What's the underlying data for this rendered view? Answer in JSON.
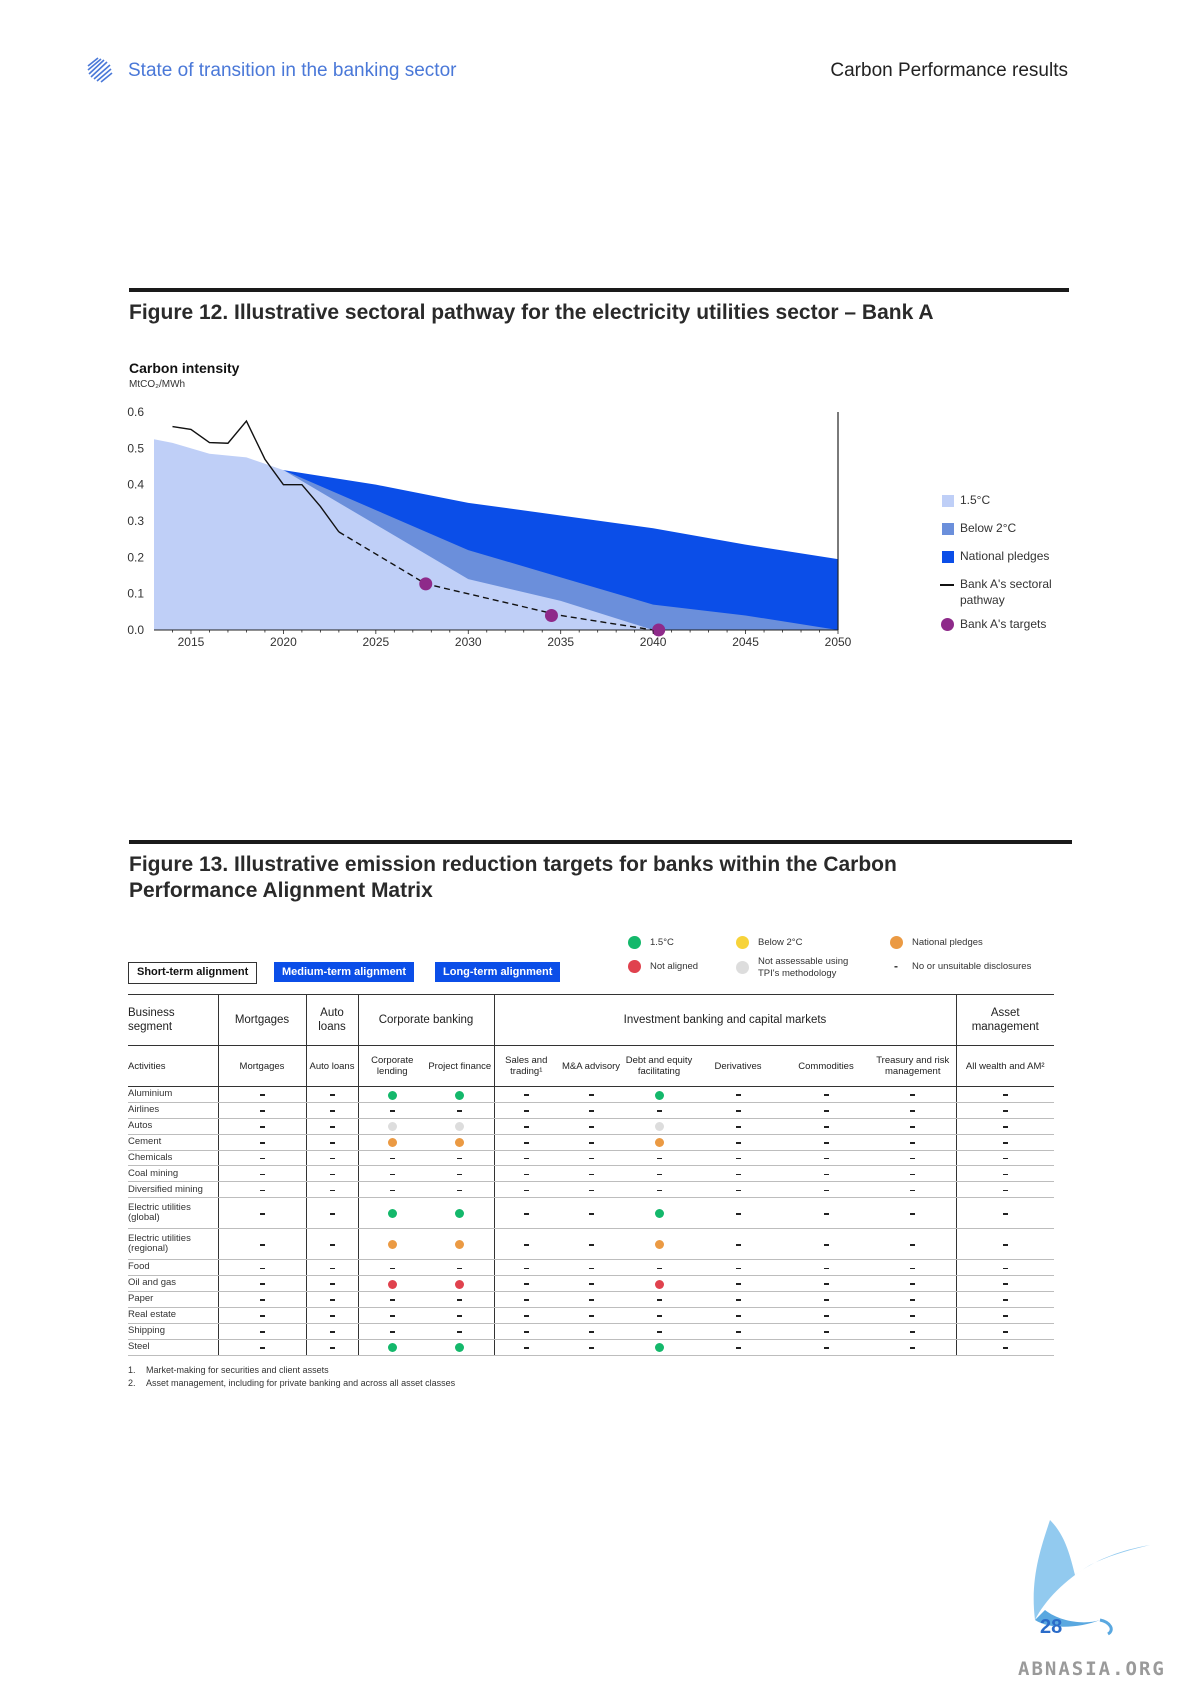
{
  "header": {
    "doc_title": "State of transition in the banking sector",
    "section_title": "Carbon Performance results"
  },
  "figure12": {
    "title": "Figure 12. Illustrative sectoral pathway for the electricity utilities sector – Bank A",
    "colors": {
      "one_point_five": "#bfcff7",
      "below_two": "#6b8fdb",
      "national": "#0b4ee8",
      "target": "#8e2a8a"
    },
    "legend": [
      {
        "key": "one_point_five",
        "label": "1.5°C",
        "type": "swatch",
        "color": "#bfcff7"
      },
      {
        "key": "below_two",
        "label": "Below 2°C",
        "type": "swatch",
        "color": "#6b8fdb"
      },
      {
        "key": "national",
        "label": "National pledges",
        "type": "swatch",
        "color": "#0b4ee8"
      },
      {
        "key": "pathway",
        "label": "Bank A's sectoral pathway",
        "type": "line",
        "color": "#111111"
      },
      {
        "key": "targets",
        "label": "Bank A's targets",
        "type": "dot",
        "color": "#8e2a8a"
      }
    ]
  },
  "chart_data": {
    "type": "area",
    "title": "Carbon intensity",
    "ylabel": "MtCO₂/MWh",
    "xlabel": "",
    "xlim": [
      2013,
      2050
    ],
    "ylim": [
      0,
      0.6
    ],
    "x_ticks": [
      2015,
      2020,
      2025,
      2030,
      2035,
      2040,
      2045,
      2050
    ],
    "y_ticks": [
      "0.0",
      "0.1",
      "0.2",
      "0.3",
      "0.4",
      "0.5",
      "0.6"
    ],
    "series": [
      {
        "name": "National pledges",
        "x": [
          2020,
          2025,
          2030,
          2035,
          2040,
          2045,
          2050
        ],
        "y": [
          0.44,
          0.4,
          0.35,
          0.315,
          0.28,
          0.235,
          0.195
        ]
      },
      {
        "name": "Below 2°C",
        "x": [
          2020,
          2025,
          2030,
          2035,
          2040,
          2045,
          2050
        ],
        "y": [
          0.44,
          0.33,
          0.22,
          0.145,
          0.07,
          0.04,
          0.0
        ]
      },
      {
        "name": "1.5°C",
        "x": [
          2013,
          2014,
          2016,
          2018,
          2020,
          2025,
          2030,
          2035,
          2040,
          2050
        ],
        "y": [
          0.525,
          0.515,
          0.485,
          0.475,
          0.44,
          0.29,
          0.14,
          0.08,
          0.0,
          0.0
        ]
      },
      {
        "name": "Bank A's sectoral pathway",
        "x": [
          2014,
          2015,
          2016,
          2017,
          2018,
          2019,
          2020,
          2021,
          2022,
          2023
        ],
        "y": [
          0.56,
          0.552,
          0.516,
          0.514,
          0.575,
          0.47,
          0.4,
          0.4,
          0.34,
          0.27
        ]
      },
      {
        "name": "Bank A's sectoral pathway (projected)",
        "x": [
          2023,
          2027.7,
          2035,
          2040
        ],
        "y": [
          0.27,
          0.127,
          0.04,
          0.0
        ]
      },
      {
        "name": "Bank A's targets",
        "x": [
          2027.7,
          2034.5,
          2040.3
        ],
        "y": [
          0.127,
          0.04,
          0.0
        ]
      }
    ]
  },
  "figure13": {
    "title_line1": "Figure 13. Illustrative emission reduction targets for banks within the Carbon",
    "title_line2": "Performance Alignment Matrix",
    "tags": {
      "short": "Short-term alignment",
      "medium": "Medium-term alignment",
      "long": "Long-term alignment"
    },
    "legend": {
      "g": "1.5°C",
      "y": "Below 2°C",
      "o": "National pledges",
      "r": "Not aligned",
      "n": "Not assessable using TPI's methodology",
      "d": "No or unsuitable disclosures"
    },
    "status_colors": {
      "g": "#14b86b",
      "y": "#f7d33a",
      "o": "#eb9a43",
      "r": "#e0424e",
      "n": "#dddddd"
    },
    "segments": {
      "first": "Business segment",
      "mortgages": "Mortgages",
      "auto": "Auto loans",
      "corporate": "Corporate banking",
      "investment": "Investment banking and capital markets",
      "asset": "Asset management"
    },
    "activities": {
      "first": "Activities",
      "mortgages": "Mortgages",
      "auto": "Auto loans",
      "corp_lending": "Corporate lending",
      "project": "Project finance",
      "sales": "Sales and trading¹",
      "ma": "M&A advisory",
      "debt": "Debt and equity facilitating",
      "deriv": "Derivatives",
      "comm": "Commodities",
      "treasury": "Treasury and risk management",
      "wealth": "All wealth and AM²"
    },
    "rows": [
      {
        "sector": "Aluminium",
        "v": [
          "d",
          "d",
          "g",
          "g",
          "d",
          "d",
          "g",
          "d",
          "d",
          "d",
          "d"
        ]
      },
      {
        "sector": "Airlines",
        "v": [
          "d",
          "d",
          "d",
          "d",
          "d",
          "d",
          "d",
          "d",
          "d",
          "d",
          "d"
        ]
      },
      {
        "sector": "Autos",
        "v": [
          "d",
          "d",
          "n",
          "n",
          "d",
          "d",
          "n",
          "d",
          "d",
          "d",
          "d"
        ]
      },
      {
        "sector": "Cement",
        "v": [
          "d",
          "d",
          "o",
          "o",
          "d",
          "d",
          "o",
          "d",
          "d",
          "d",
          "d"
        ]
      },
      {
        "sector": "Chemicals",
        "v": [
          "d",
          "d",
          "d",
          "d",
          "d",
          "d",
          "d",
          "d",
          "d",
          "d",
          "d"
        ]
      },
      {
        "sector": "Coal mining",
        "v": [
          "d",
          "d",
          "d",
          "d",
          "d",
          "d",
          "d",
          "d",
          "d",
          "d",
          "d"
        ]
      },
      {
        "sector": "Diversified mining",
        "v": [
          "d",
          "d",
          "d",
          "d",
          "d",
          "d",
          "d",
          "d",
          "d",
          "d",
          "d"
        ]
      },
      {
        "sector": "Electric utilities (global)",
        "tall": true,
        "v": [
          "d",
          "d",
          "g",
          "g",
          "d",
          "d",
          "g",
          "d",
          "d",
          "d",
          "d"
        ]
      },
      {
        "sector": "Electric utilities (regional)",
        "tall": true,
        "v": [
          "d",
          "d",
          "o",
          "o",
          "d",
          "d",
          "o",
          "d",
          "d",
          "d",
          "d"
        ]
      },
      {
        "sector": "Food",
        "v": [
          "d",
          "d",
          "d",
          "d",
          "d",
          "d",
          "d",
          "d",
          "d",
          "d",
          "d"
        ]
      },
      {
        "sector": "Oil and gas",
        "v": [
          "d",
          "d",
          "r",
          "r",
          "d",
          "d",
          "r",
          "d",
          "d",
          "d",
          "d"
        ]
      },
      {
        "sector": "Paper",
        "v": [
          "d",
          "d",
          "d",
          "d",
          "d",
          "d",
          "d",
          "d",
          "d",
          "d",
          "d"
        ]
      },
      {
        "sector": "Real estate",
        "v": [
          "d",
          "d",
          "d",
          "d",
          "d",
          "d",
          "d",
          "d",
          "d",
          "d",
          "d"
        ]
      },
      {
        "sector": "Shipping",
        "v": [
          "d",
          "d",
          "d",
          "d",
          "d",
          "d",
          "d",
          "d",
          "d",
          "d",
          "d"
        ]
      },
      {
        "sector": "Steel",
        "v": [
          "d",
          "d",
          "g",
          "g",
          "d",
          "d",
          "g",
          "d",
          "d",
          "d",
          "d"
        ]
      }
    ],
    "footnotes": [
      {
        "n": "1.",
        "text": "Market-making for securities and client assets"
      },
      {
        "n": "2.",
        "text": "Asset management, including for private banking and across all asset classes"
      }
    ]
  },
  "page_number": "28",
  "watermark": "ABNASIA.ORG"
}
